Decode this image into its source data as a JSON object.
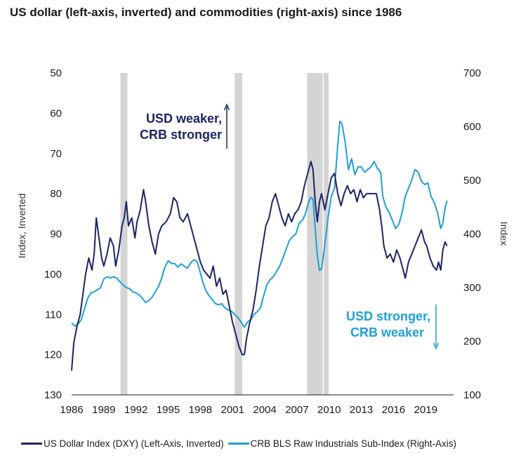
{
  "title": "US dollar (left-axis, inverted) and commodities (right-axis) since 1986",
  "colors": {
    "dxy": "#1b2466",
    "crb": "#1ea0d8",
    "recession": "#d4d4d4"
  },
  "chart_data": {
    "type": "line",
    "title": "US dollar (left-axis, inverted) and commodities (right-axis) since 1986",
    "xlabel": "",
    "ylabel_left": "Index, Inverted",
    "ylabel_right": "Index",
    "x_ticks": [
      "1986",
      "1989",
      "1992",
      "1995",
      "1998",
      "2001",
      "2004",
      "2007",
      "2010",
      "2013",
      "2016",
      "2019"
    ],
    "xlim": [
      1986,
      2021.6
    ],
    "y_left_ticks": [
      50,
      60,
      70,
      80,
      90,
      100,
      110,
      120,
      130
    ],
    "y_left_lim": [
      130,
      50
    ],
    "y_left_inverted": true,
    "y_right_ticks": [
      700,
      600,
      500,
      400,
      300,
      200,
      100
    ],
    "y_right_lim": [
      100,
      700
    ],
    "recessions": [
      [
        1990.55,
        1991.2
      ],
      [
        2001.2,
        2001.9
      ],
      [
        2007.95,
        2009.5
      ],
      [
        2009.5,
        2009.95
      ]
    ],
    "series": [
      {
        "name": "US Dollar Index (DXY) (Left-Axis, Inverted)",
        "axis": "left",
        "points": [
          [
            1986.0,
            124
          ],
          [
            1986.2,
            117
          ],
          [
            1986.5,
            113
          ],
          [
            1986.8,
            110
          ],
          [
            1987.0,
            106
          ],
          [
            1987.3,
            100
          ],
          [
            1987.6,
            96
          ],
          [
            1987.9,
            99
          ],
          [
            1988.1,
            95
          ],
          [
            1988.3,
            86
          ],
          [
            1988.5,
            90
          ],
          [
            1988.8,
            96
          ],
          [
            1989.0,
            98
          ],
          [
            1989.3,
            95
          ],
          [
            1989.6,
            91
          ],
          [
            1989.9,
            93
          ],
          [
            1990.1,
            98
          ],
          [
            1990.4,
            94
          ],
          [
            1990.7,
            88
          ],
          [
            1990.9,
            86
          ],
          [
            1991.1,
            82
          ],
          [
            1991.3,
            88
          ],
          [
            1991.6,
            86
          ],
          [
            1991.9,
            91
          ],
          [
            1992.1,
            87
          ],
          [
            1992.4,
            84
          ],
          [
            1992.7,
            79
          ],
          [
            1992.9,
            82
          ],
          [
            1993.2,
            88
          ],
          [
            1993.5,
            92
          ],
          [
            1993.8,
            95
          ],
          [
            1994.1,
            90
          ],
          [
            1994.4,
            88
          ],
          [
            1994.8,
            87
          ],
          [
            1995.2,
            85
          ],
          [
            1995.5,
            81
          ],
          [
            1995.8,
            82
          ],
          [
            1996.1,
            86
          ],
          [
            1996.4,
            87
          ],
          [
            1996.8,
            85
          ],
          [
            1997.1,
            88
          ],
          [
            1997.4,
            91
          ],
          [
            1997.7,
            94
          ],
          [
            1998.0,
            97
          ],
          [
            1998.3,
            99
          ],
          [
            1998.6,
            100
          ],
          [
            1998.9,
            101
          ],
          [
            1999.2,
            98
          ],
          [
            1999.5,
            103
          ],
          [
            1999.8,
            101
          ],
          [
            2000.1,
            105
          ],
          [
            2000.4,
            104
          ],
          [
            2000.7,
            108
          ],
          [
            2001.0,
            112
          ],
          [
            2001.3,
            115
          ],
          [
            2001.6,
            118
          ],
          [
            2001.9,
            120
          ],
          [
            2002.1,
            120
          ],
          [
            2002.3,
            116
          ],
          [
            2002.6,
            112
          ],
          [
            2002.9,
            109
          ],
          [
            2003.2,
            104
          ],
          [
            2003.5,
            98
          ],
          [
            2003.8,
            93
          ],
          [
            2004.1,
            88
          ],
          [
            2004.4,
            86
          ],
          [
            2004.7,
            82
          ],
          [
            2005.0,
            80
          ],
          [
            2005.3,
            83
          ],
          [
            2005.6,
            86
          ],
          [
            2005.9,
            88
          ],
          [
            2006.2,
            85
          ],
          [
            2006.5,
            87
          ],
          [
            2006.8,
            85
          ],
          [
            2007.1,
            84
          ],
          [
            2007.4,
            82
          ],
          [
            2007.7,
            78
          ],
          [
            2008.0,
            75
          ],
          [
            2008.3,
            72
          ],
          [
            2008.5,
            74
          ],
          [
            2008.7,
            82
          ],
          [
            2008.9,
            87
          ],
          [
            2009.1,
            82
          ],
          [
            2009.3,
            80
          ],
          [
            2009.6,
            84
          ],
          [
            2009.9,
            80
          ],
          [
            2010.2,
            76
          ],
          [
            2010.5,
            75
          ],
          [
            2010.8,
            80
          ],
          [
            2011.1,
            83
          ],
          [
            2011.4,
            80
          ],
          [
            2011.7,
            78
          ],
          [
            2012.0,
            80
          ],
          [
            2012.3,
            79
          ],
          [
            2012.6,
            82
          ],
          [
            2012.9,
            79
          ],
          [
            2013.2,
            81
          ],
          [
            2013.5,
            80
          ],
          [
            2013.8,
            80
          ],
          [
            2014.1,
            80
          ],
          [
            2014.4,
            80
          ],
          [
            2014.7,
            84
          ],
          [
            2014.9,
            88
          ],
          [
            2015.1,
            93
          ],
          [
            2015.4,
            96
          ],
          [
            2015.7,
            95
          ],
          [
            2016.0,
            97
          ],
          [
            2016.3,
            94
          ],
          [
            2016.6,
            96
          ],
          [
            2016.9,
            99
          ],
          [
            2017.1,
            101
          ],
          [
            2017.4,
            97
          ],
          [
            2017.7,
            95
          ],
          [
            2018.0,
            93
          ],
          [
            2018.3,
            91
          ],
          [
            2018.6,
            89
          ],
          [
            2018.9,
            92
          ],
          [
            2019.1,
            93
          ],
          [
            2019.4,
            96
          ],
          [
            2019.7,
            98
          ],
          [
            2020.0,
            99
          ],
          [
            2020.2,
            97
          ],
          [
            2020.4,
            99
          ],
          [
            2020.6,
            94
          ],
          [
            2020.8,
            92
          ],
          [
            2021.0,
            93
          ]
        ]
      },
      {
        "name": "CRB BLS Raw Industrials Sub-Index (Right-Axis)",
        "axis": "right",
        "points": [
          [
            1986.0,
            234
          ],
          [
            1986.3,
            228
          ],
          [
            1986.6,
            232
          ],
          [
            1986.9,
            240
          ],
          [
            1987.2,
            260
          ],
          [
            1987.5,
            280
          ],
          [
            1987.8,
            290
          ],
          [
            1988.1,
            292
          ],
          [
            1988.4,
            296
          ],
          [
            1988.7,
            300
          ],
          [
            1989.0,
            316
          ],
          [
            1989.3,
            320
          ],
          [
            1989.6,
            318
          ],
          [
            1989.9,
            320
          ],
          [
            1990.2,
            318
          ],
          [
            1990.5,
            311
          ],
          [
            1990.8,
            305
          ],
          [
            1991.1,
            300
          ],
          [
            1991.4,
            298
          ],
          [
            1991.7,
            292
          ],
          [
            1992.0,
            290
          ],
          [
            1992.3,
            286
          ],
          [
            1992.6,
            280
          ],
          [
            1992.9,
            272
          ],
          [
            1993.2,
            276
          ],
          [
            1993.5,
            282
          ],
          [
            1993.8,
            292
          ],
          [
            1994.1,
            302
          ],
          [
            1994.4,
            318
          ],
          [
            1994.7,
            338
          ],
          [
            1995.0,
            350
          ],
          [
            1995.3,
            345
          ],
          [
            1995.6,
            345
          ],
          [
            1995.9,
            338
          ],
          [
            1996.2,
            344
          ],
          [
            1996.5,
            340
          ],
          [
            1996.8,
            336
          ],
          [
            1997.1,
            346
          ],
          [
            1997.4,
            352
          ],
          [
            1997.7,
            348
          ],
          [
            1997.9,
            335
          ],
          [
            1998.2,
            312
          ],
          [
            1998.5,
            295
          ],
          [
            1998.8,
            285
          ],
          [
            1999.1,
            278
          ],
          [
            1999.4,
            270
          ],
          [
            1999.7,
            268
          ],
          [
            2000.0,
            270
          ],
          [
            2000.3,
            262
          ],
          [
            2000.6,
            258
          ],
          [
            2000.9,
            256
          ],
          [
            2001.2,
            250
          ],
          [
            2001.5,
            244
          ],
          [
            2001.8,
            236
          ],
          [
            2002.1,
            226
          ],
          [
            2002.4,
            236
          ],
          [
            2002.7,
            240
          ],
          [
            2003.0,
            250
          ],
          [
            2003.3,
            255
          ],
          [
            2003.6,
            262
          ],
          [
            2003.9,
            285
          ],
          [
            2004.2,
            305
          ],
          [
            2004.5,
            315
          ],
          [
            2004.8,
            320
          ],
          [
            2005.1,
            330
          ],
          [
            2005.4,
            340
          ],
          [
            2005.7,
            355
          ],
          [
            2006.0,
            372
          ],
          [
            2006.3,
            388
          ],
          [
            2006.6,
            395
          ],
          [
            2006.9,
            400
          ],
          [
            2007.2,
            420
          ],
          [
            2007.5,
            425
          ],
          [
            2007.8,
            438
          ],
          [
            2008.1,
            460
          ],
          [
            2008.3,
            468
          ],
          [
            2008.5,
            465
          ],
          [
            2008.7,
            410
          ],
          [
            2008.9,
            360
          ],
          [
            2009.1,
            332
          ],
          [
            2009.3,
            335
          ],
          [
            2009.6,
            380
          ],
          [
            2009.9,
            430
          ],
          [
            2010.2,
            470
          ],
          [
            2010.5,
            485
          ],
          [
            2010.8,
            565
          ],
          [
            2011.0,
            610
          ],
          [
            2011.2,
            605
          ],
          [
            2011.5,
            570
          ],
          [
            2011.8,
            520
          ],
          [
            2012.1,
            540
          ],
          [
            2012.4,
            510
          ],
          [
            2012.7,
            525
          ],
          [
            2013.0,
            525
          ],
          [
            2013.3,
            515
          ],
          [
            2013.6,
            520
          ],
          [
            2013.9,
            525
          ],
          [
            2014.2,
            535
          ],
          [
            2014.5,
            522
          ],
          [
            2014.8,
            515
          ],
          [
            2015.0,
            470
          ],
          [
            2015.3,
            450
          ],
          [
            2015.6,
            440
          ],
          [
            2015.9,
            425
          ],
          [
            2016.2,
            410
          ],
          [
            2016.5,
            418
          ],
          [
            2016.8,
            440
          ],
          [
            2017.1,
            470
          ],
          [
            2017.4,
            485
          ],
          [
            2017.7,
            500
          ],
          [
            2018.0,
            520
          ],
          [
            2018.3,
            515
          ],
          [
            2018.6,
            498
          ],
          [
            2018.9,
            492
          ],
          [
            2019.2,
            495
          ],
          [
            2019.5,
            470
          ],
          [
            2019.8,
            458
          ],
          [
            2020.1,
            440
          ],
          [
            2020.4,
            410
          ],
          [
            2020.6,
            420
          ],
          [
            2020.8,
            448
          ],
          [
            2021.0,
            462
          ]
        ]
      }
    ],
    "annotations": [
      {
        "text_line1": "USD weaker,",
        "text_line2": "CRB stronger",
        "arrow": "up",
        "color": "#1b2466"
      },
      {
        "text_line1": "USD stronger,",
        "text_line2": "CRB weaker",
        "arrow": "down",
        "color": "#1ea0d8"
      }
    ],
    "legend": [
      {
        "label": "US Dollar Index (DXY) (Left-Axis, Inverted)",
        "color": "#1b2466"
      },
      {
        "label": "CRB BLS Raw Industrials Sub-Index (Right-Axis)",
        "color": "#1ea0d8"
      }
    ]
  }
}
